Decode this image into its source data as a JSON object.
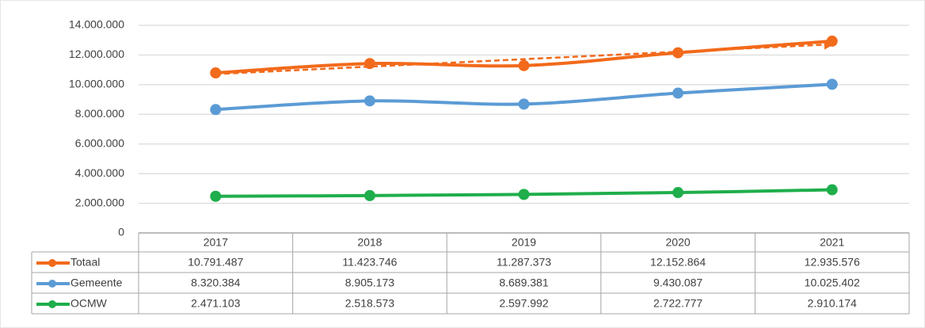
{
  "chart_data": {
    "type": "line",
    "categories": [
      "2017",
      "2018",
      "2019",
      "2020",
      "2021"
    ],
    "series": [
      {
        "name": "Totaal",
        "color": "#f26a1b",
        "values": [
          10791487,
          11423746,
          11287373,
          12152864,
          12935576
        ],
        "value_labels": [
          "10.791.487",
          "11.423.746",
          "11.287.373",
          "12.152.864",
          "12.935.576"
        ],
        "trendline": true
      },
      {
        "name": "Gemeente",
        "color": "#5b9bd5",
        "values": [
          8320384,
          8905173,
          8689381,
          9430087,
          10025402
        ],
        "value_labels": [
          "8.320.384",
          "8.905.173",
          "8.689.381",
          "9.430.087",
          "10.025.402"
        ]
      },
      {
        "name": "OCMW",
        "color": "#1fae4b",
        "values": [
          2471103,
          2518573,
          2597992,
          2722777,
          2910174
        ],
        "value_labels": [
          "2.471.103",
          "2.518.573",
          "2.597.992",
          "2.722.777",
          "2.910.174"
        ]
      }
    ],
    "ylim": [
      0,
      14000000
    ],
    "yticks": [
      0,
      {
        "value": 2000000,
        "label": "2.000.000"
      },
      {
        "value": 4000000,
        "label": "4.000.000"
      },
      {
        "value": 6000000,
        "label": "6.000.000"
      },
      {
        "value": 8000000,
        "label": "8.000.000"
      },
      {
        "value": 10000000,
        "label": "10.000.000"
      },
      {
        "value": 12000000,
        "label": "12.000.000"
      },
      {
        "value": 14000000,
        "label": "14.000.000"
      }
    ],
    "grid": true,
    "smooth": true,
    "data_table": true
  }
}
